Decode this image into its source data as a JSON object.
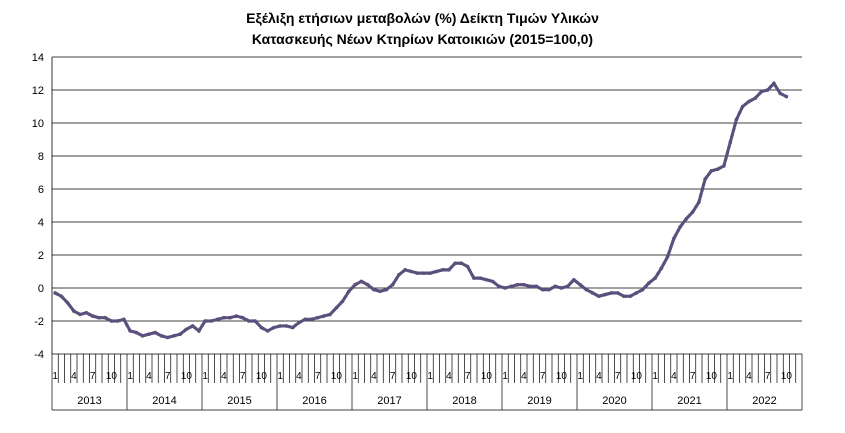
{
  "chart_data": {
    "type": "line",
    "title": "Εξέλιξη ετήσιων μεταβολών (%) Δείκτη Τιμών Υλικών",
    "subtitle": "Κατασκευής Νέων Κτηρίων Κατοικιών (2015=100,0)",
    "xlabel": "",
    "ylabel": "",
    "ylim": [
      -4,
      14
    ],
    "yticks": [
      "-4",
      "-2",
      "0",
      "2",
      "4",
      "6",
      "8",
      "10",
      "12",
      "14"
    ],
    "grid": true,
    "month_ticks": [
      "1",
      "4",
      "7",
      "10"
    ],
    "years": [
      "2013",
      "2014",
      "2015",
      "2016",
      "2017",
      "2018",
      "2019",
      "2020",
      "2021",
      "2022"
    ],
    "series_color": "#5b4f7c",
    "series": [
      {
        "values": [
          -0.3,
          -0.5,
          -0.9,
          -1.4,
          -1.6,
          -1.5,
          -1.7,
          -1.8,
          -1.8,
          -2.0,
          -2.0,
          -1.9,
          -2.6,
          -2.7,
          -2.9,
          -2.8,
          -2.7,
          -2.9,
          -3.0,
          -2.9,
          -2.8,
          -2.5,
          -2.3,
          -2.6,
          -2.0,
          -2.0,
          -1.9,
          -1.8,
          -1.8,
          -1.7,
          -1.8,
          -2.0,
          -2.0,
          -2.4,
          -2.6,
          -2.4,
          -2.3,
          -2.3,
          -2.4,
          -2.1,
          -1.9,
          -1.9,
          -1.8,
          -1.7,
          -1.6,
          -1.2,
          -0.8,
          -0.2,
          0.2,
          0.4,
          0.2,
          -0.1,
          -0.2,
          -0.1,
          0.2,
          0.8,
          1.1,
          1.0,
          0.9,
          0.9,
          0.9,
          1.0,
          1.1,
          1.1,
          1.5,
          1.5,
          1.3,
          0.6,
          0.6,
          0.5,
          0.4,
          0.1,
          0.0,
          0.1,
          0.2,
          0.2,
          0.1,
          0.1,
          -0.1,
          -0.1,
          0.1,
          0.0,
          0.1,
          0.5,
          0.2,
          -0.1,
          -0.3,
          -0.5,
          -0.4,
          -0.3,
          -0.3,
          -0.5,
          -0.5,
          -0.3,
          -0.1,
          0.3,
          0.6,
          1.2,
          1.9,
          3.0,
          3.7,
          4.2,
          4.6,
          5.2,
          6.6,
          7.1,
          7.2,
          7.4,
          8.8,
          10.2,
          11.0,
          11.3,
          11.5,
          11.9,
          12.0,
          12.4,
          11.8,
          11.6
        ]
      }
    ]
  }
}
